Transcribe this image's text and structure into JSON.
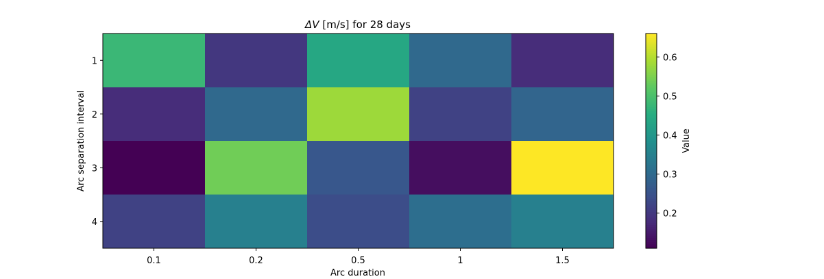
{
  "chart_data": {
    "type": "heatmap",
    "title_symbol": "ΔV",
    "title_rest": " [m/s] for 28 days",
    "xlabel": "Arc duration",
    "ylabel": "Arc separation interval",
    "x_categories": [
      "0.1",
      "0.2",
      "0.5",
      "1",
      "1.5"
    ],
    "y_categories": [
      "1",
      "2",
      "3",
      "4"
    ],
    "values": [
      [
        0.48,
        0.2,
        0.44,
        0.3,
        0.18
      ],
      [
        0.18,
        0.3,
        0.58,
        0.22,
        0.29
      ],
      [
        0.11,
        0.54,
        0.26,
        0.13,
        0.66
      ],
      [
        0.22,
        0.35,
        0.24,
        0.31,
        0.35
      ]
    ],
    "colorbar": {
      "label": "Value",
      "min": 0.11,
      "max": 0.66,
      "ticks": [
        0.2,
        0.3,
        0.4,
        0.5,
        0.6
      ],
      "tick_labels": [
        "0.2",
        "0.3",
        "0.4",
        "0.5",
        "0.6"
      ]
    },
    "colormap": "viridis",
    "grid": false
  }
}
